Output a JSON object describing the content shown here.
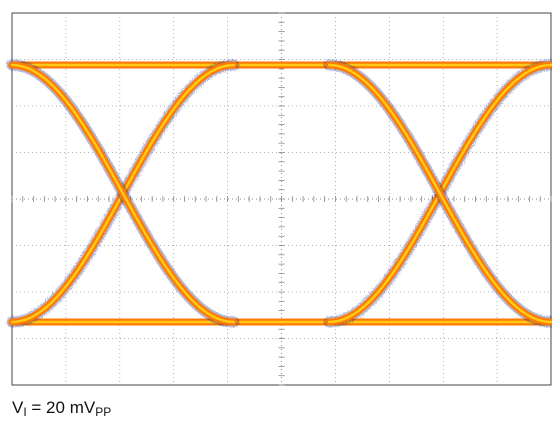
{
  "chart_data": {
    "type": "line",
    "title": "",
    "xlabel": "",
    "ylabel": "",
    "plot_kind": "eye diagram (oscilloscope persistence display)",
    "grid": true,
    "grid_divisions": {
      "horizontal": 10,
      "vertical": 8
    },
    "colors": {
      "trace": "#ff7a00",
      "trace_core": "#ffd21a",
      "noise": "#2a2a8a",
      "grid": "#9a9a9a",
      "frame": "#444444"
    },
    "x": [
      -0.5,
      -0.25,
      0,
      0.25,
      0.5,
      0.75,
      1.0,
      1.25,
      1.5
    ],
    "series": [
      {
        "values": [
          0,
          0.02,
          0.5,
          0.98,
          1,
          0.98,
          0.5,
          0.02,
          0
        ]
      },
      {
        "values": [
          1,
          0.98,
          0.5,
          0.02,
          0,
          0.02,
          0.5,
          0.98,
          1
        ]
      },
      {
        "values": [
          1,
          1,
          1,
          1,
          1,
          1,
          1,
          1,
          1
        ]
      },
      {
        "values": [
          0,
          0,
          0,
          0,
          0,
          0,
          0,
          0,
          0
        ]
      }
    ],
    "crossings_x": [
      0,
      1.0
    ]
  },
  "caption": {
    "main": "V",
    "sub1": "I",
    "mid": " = 20 mV",
    "sub2": "PP"
  }
}
